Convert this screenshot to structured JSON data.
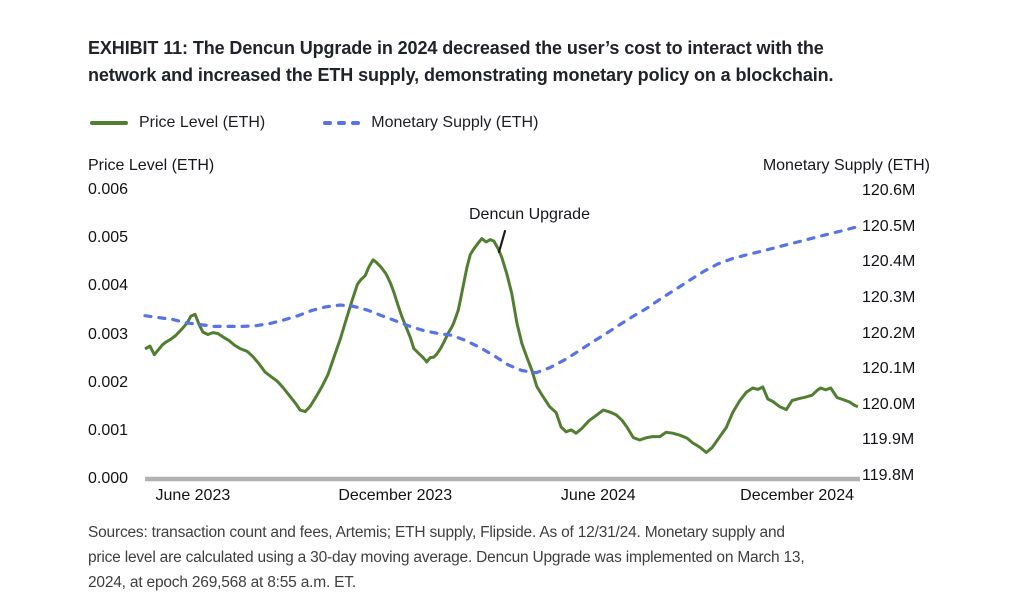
{
  "title_lines": [
    "EXHIBIT 11: The Dencun Upgrade in 2024 decreased the user’s cost to interact with the",
    "network and increased the ETH supply, demonstrating monetary policy on a blockchain."
  ],
  "legend": {
    "price_label": "Price Level (ETH)",
    "supply_label": "Monetary Supply (ETH)"
  },
  "sources_lines": [
    "Sources: transaction count and fees, Artemis; ETH supply, Flipside. As of 12/31/24. Monetary supply and",
    "price level are calculated using a 30-day moving average. Dencun Upgrade was implemented on March 13,",
    "2024, at epoch 269,568 at 8:55 a.m. ET."
  ],
  "chart_data": {
    "type": "line",
    "title": "EXHIBIT 11: The Dencun Upgrade in 2024 decreased the user’s cost to interact with the network and increased the ETH supply, demonstrating monetary policy on a blockchain.",
    "annotation": {
      "label": "Dencun Upgrade",
      "points_to": "price peak just before March 13, 2024 upgrade"
    },
    "left_axis": {
      "title": "Price Level (ETH)",
      "range": [
        0,
        0.006
      ],
      "ticks": [
        "0.006",
        "0.005",
        "0.004",
        "0.003",
        "0.002",
        "0.001",
        "0.000"
      ]
    },
    "right_axis": {
      "title": "Monetary Supply (ETH)",
      "range": [
        119.8,
        120.6
      ],
      "ticks": [
        "120.6M",
        "120.5M",
        "120.4M",
        "120.3M",
        "120.2M",
        "120.1M",
        "120.0M",
        "119.9M",
        "119.8M"
      ]
    },
    "x_axis": {
      "ticks": [
        "June 2023",
        "December 2023",
        "June 2024",
        "December 2024"
      ],
      "tick_positions": [
        0.067,
        0.35,
        0.634,
        0.912
      ]
    },
    "legend_position": "top-left",
    "grid": false,
    "series": [
      {
        "name": "Price Level (ETH)",
        "axis": "left",
        "style": "solid",
        "color": "#517e30",
        "points": [
          [
            0.0,
            0.0027
          ],
          [
            0.007,
            0.00276
          ],
          [
            0.013,
            0.00258
          ],
          [
            0.018,
            0.00267
          ],
          [
            0.024,
            0.00278
          ],
          [
            0.029,
            0.00284
          ],
          [
            0.036,
            0.0029
          ],
          [
            0.043,
            0.00298
          ],
          [
            0.052,
            0.00312
          ],
          [
            0.059,
            0.00324
          ],
          [
            0.064,
            0.00338
          ],
          [
            0.07,
            0.00342
          ],
          [
            0.076,
            0.0032
          ],
          [
            0.081,
            0.00305
          ],
          [
            0.088,
            0.003
          ],
          [
            0.095,
            0.00304
          ],
          [
            0.102,
            0.00302
          ],
          [
            0.109,
            0.00295
          ],
          [
            0.117,
            0.00288
          ],
          [
            0.126,
            0.00277
          ],
          [
            0.134,
            0.0027
          ],
          [
            0.143,
            0.00265
          ],
          [
            0.151,
            0.00254
          ],
          [
            0.159,
            0.0024
          ],
          [
            0.168,
            0.00222
          ],
          [
            0.176,
            0.00213
          ],
          [
            0.185,
            0.00203
          ],
          [
            0.193,
            0.0019
          ],
          [
            0.201,
            0.00175
          ],
          [
            0.21,
            0.00158
          ],
          [
            0.217,
            0.00143
          ],
          [
            0.224,
            0.0014
          ],
          [
            0.231,
            0.00151
          ],
          [
            0.239,
            0.0017
          ],
          [
            0.248,
            0.00193
          ],
          [
            0.256,
            0.00217
          ],
          [
            0.264,
            0.00252
          ],
          [
            0.273,
            0.0029
          ],
          [
            0.281,
            0.00329
          ],
          [
            0.29,
            0.00372
          ],
          [
            0.297,
            0.00404
          ],
          [
            0.302,
            0.00414
          ],
          [
            0.308,
            0.00422
          ],
          [
            0.313,
            0.0044
          ],
          [
            0.319,
            0.00455
          ],
          [
            0.324,
            0.00449
          ],
          [
            0.33,
            0.0044
          ],
          [
            0.337,
            0.00426
          ],
          [
            0.343,
            0.00408
          ],
          [
            0.348,
            0.00388
          ],
          [
            0.354,
            0.0036
          ],
          [
            0.359,
            0.00338
          ],
          [
            0.365,
            0.00316
          ],
          [
            0.371,
            0.00294
          ],
          [
            0.376,
            0.00271
          ],
          [
            0.382,
            0.00262
          ],
          [
            0.387,
            0.00255
          ],
          [
            0.392,
            0.00247
          ],
          [
            0.394,
            0.00243
          ],
          [
            0.399,
            0.00252
          ],
          [
            0.404,
            0.00253
          ],
          [
            0.408,
            0.00259
          ],
          [
            0.413,
            0.0027
          ],
          [
            0.418,
            0.00284
          ],
          [
            0.424,
            0.00303
          ],
          [
            0.429,
            0.00315
          ],
          [
            0.432,
            0.00325
          ],
          [
            0.438,
            0.0035
          ],
          [
            0.442,
            0.00378
          ],
          [
            0.446,
            0.00408
          ],
          [
            0.45,
            0.00438
          ],
          [
            0.455,
            0.00466
          ],
          [
            0.46,
            0.00478
          ],
          [
            0.466,
            0.0049
          ],
          [
            0.471,
            0.00499
          ],
          [
            0.477,
            0.00492
          ],
          [
            0.483,
            0.00497
          ],
          [
            0.488,
            0.00494
          ],
          [
            0.494,
            0.00478
          ],
          [
            0.499,
            0.0046
          ],
          [
            0.506,
            0.00426
          ],
          [
            0.513,
            0.00385
          ],
          [
            0.52,
            0.00325
          ],
          [
            0.527,
            0.00282
          ],
          [
            0.534,
            0.00253
          ],
          [
            0.541,
            0.00226
          ],
          [
            0.548,
            0.00192
          ],
          [
            0.557,
            0.0017
          ],
          [
            0.566,
            0.0015
          ],
          [
            0.575,
            0.00138
          ],
          [
            0.582,
            0.00108
          ],
          [
            0.589,
            0.00098
          ],
          [
            0.596,
            0.00102
          ],
          [
            0.603,
            0.00095
          ],
          [
            0.611,
            0.00105
          ],
          [
            0.621,
            0.00121
          ],
          [
            0.631,
            0.00132
          ],
          [
            0.641,
            0.00143
          ],
          [
            0.65,
            0.00139
          ],
          [
            0.659,
            0.00133
          ],
          [
            0.667,
            0.00122
          ],
          [
            0.674,
            0.00108
          ],
          [
            0.683,
            0.00086
          ],
          [
            0.692,
            0.00081
          ],
          [
            0.702,
            0.00086
          ],
          [
            0.71,
            0.00088
          ],
          [
            0.72,
            0.00088
          ],
          [
            0.729,
            0.00097
          ],
          [
            0.738,
            0.00095
          ],
          [
            0.748,
            0.00091
          ],
          [
            0.758,
            0.00085
          ],
          [
            0.766,
            0.00075
          ],
          [
            0.776,
            0.00066
          ],
          [
            0.785,
            0.00055
          ],
          [
            0.793,
            0.00065
          ],
          [
            0.803,
            0.00086
          ],
          [
            0.813,
            0.00107
          ],
          [
            0.822,
            0.00138
          ],
          [
            0.832,
            0.00163
          ],
          [
            0.841,
            0.0018
          ],
          [
            0.85,
            0.00189
          ],
          [
            0.857,
            0.00186
          ],
          [
            0.864,
            0.00191
          ],
          [
            0.871,
            0.00166
          ],
          [
            0.878,
            0.00161
          ],
          [
            0.888,
            0.0015
          ],
          [
            0.897,
            0.00144
          ],
          [
            0.905,
            0.00163
          ],
          [
            0.915,
            0.00167
          ],
          [
            0.924,
            0.0017
          ],
          [
            0.933,
            0.00174
          ],
          [
            0.94,
            0.00184
          ],
          [
            0.945,
            0.00189
          ],
          [
            0.952,
            0.00185
          ],
          [
            0.959,
            0.00189
          ],
          [
            0.968,
            0.00169
          ],
          [
            0.976,
            0.00165
          ],
          [
            0.985,
            0.0016
          ],
          [
            0.992,
            0.00153
          ],
          [
            0.997,
            0.0015
          ]
        ]
      },
      {
        "name": "Monetary Supply (ETH)",
        "axis": "right",
        "style": "dashed",
        "color": "#5873e3",
        "points": [
          [
            0.0,
            120.25
          ],
          [
            0.018,
            120.245
          ],
          [
            0.038,
            120.24
          ],
          [
            0.057,
            120.23
          ],
          [
            0.077,
            120.225
          ],
          [
            0.097,
            120.22
          ],
          [
            0.116,
            120.22
          ],
          [
            0.136,
            120.22
          ],
          [
            0.155,
            120.222
          ],
          [
            0.175,
            120.228
          ],
          [
            0.194,
            120.238
          ],
          [
            0.214,
            120.25
          ],
          [
            0.234,
            120.265
          ],
          [
            0.253,
            120.275
          ],
          [
            0.273,
            120.28
          ],
          [
            0.292,
            120.276
          ],
          [
            0.312,
            120.265
          ],
          [
            0.331,
            120.25
          ],
          [
            0.351,
            120.235
          ],
          [
            0.371,
            120.22
          ],
          [
            0.39,
            120.208
          ],
          [
            0.41,
            120.2
          ],
          [
            0.429,
            120.195
          ],
          [
            0.449,
            120.18
          ],
          [
            0.469,
            120.16
          ],
          [
            0.488,
            120.138
          ],
          [
            0.508,
            120.112
          ],
          [
            0.527,
            120.096
          ],
          [
            0.547,
            120.09
          ],
          [
            0.566,
            120.104
          ],
          [
            0.586,
            120.125
          ],
          [
            0.606,
            120.15
          ],
          [
            0.625,
            120.175
          ],
          [
            0.645,
            120.2
          ],
          [
            0.664,
            120.225
          ],
          [
            0.684,
            120.25
          ],
          [
            0.703,
            120.272
          ],
          [
            0.723,
            120.3
          ],
          [
            0.743,
            120.325
          ],
          [
            0.762,
            120.35
          ],
          [
            0.782,
            120.375
          ],
          [
            0.801,
            120.395
          ],
          [
            0.821,
            120.41
          ],
          [
            0.84,
            120.42
          ],
          [
            0.86,
            120.43
          ],
          [
            0.88,
            120.44
          ],
          [
            0.899,
            120.45
          ],
          [
            0.919,
            120.46
          ],
          [
            0.938,
            120.47
          ],
          [
            0.958,
            120.48
          ],
          [
            0.978,
            120.49
          ],
          [
            0.997,
            120.5
          ]
        ]
      }
    ]
  },
  "colors": {
    "price_line": "#517e30",
    "supply_line": "#5873e3",
    "x_axis_bar": "#b1b1b1",
    "title_text": "#20232a",
    "sources_text": "#3f3f3f"
  }
}
